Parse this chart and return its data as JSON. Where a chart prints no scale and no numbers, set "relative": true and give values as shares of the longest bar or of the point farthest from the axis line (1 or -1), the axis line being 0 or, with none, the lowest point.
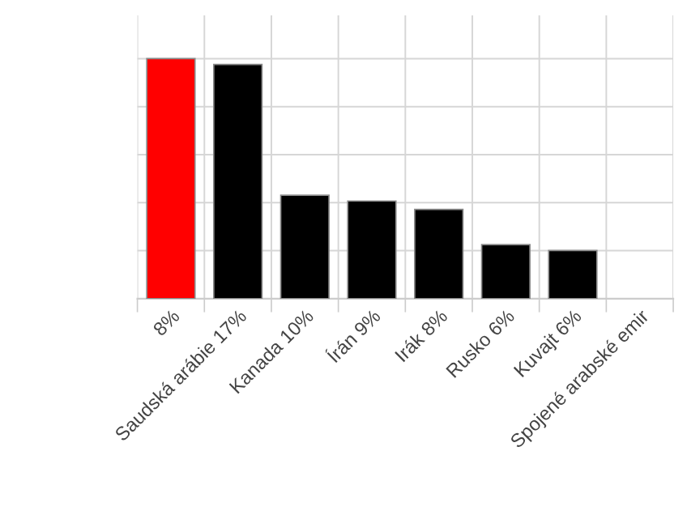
{
  "chart_data": {
    "type": "bar",
    "relative": true,
    "grid": true,
    "categories": [
      "8%",
      "Saudská arábie 17%",
      "Kanada 10%",
      "Írán 9%",
      "Irák 8%",
      "Rusko 6%",
      "Kuvajt 6%",
      "Spojené arabské emir"
    ],
    "values": [
      1,
      0.976,
      0.431,
      0.407,
      0.372,
      0.225,
      0.201,
      null
    ],
    "colors": [
      "#ff0000",
      "#000000",
      "#000000",
      "#000000",
      "#000000",
      "#000000",
      "#000000",
      "#000000"
    ]
  }
}
